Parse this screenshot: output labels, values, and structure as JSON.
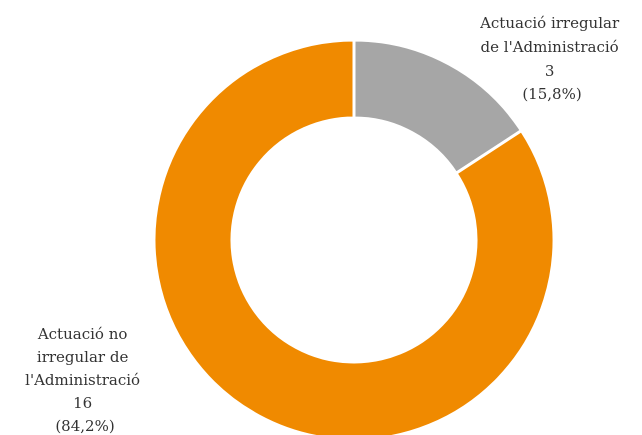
{
  "chart_data": {
    "type": "pie",
    "subtype": "donut",
    "title": "",
    "slices": [
      {
        "label_lines": [
          "Actuació irregular",
          "de l'Administració"
        ],
        "value": 3,
        "percent_label": "(15,8%)",
        "color": "#a6a6a6"
      },
      {
        "label_lines": [
          "Actuació no",
          "irregular de",
          "l'Administració"
        ],
        "value": 16,
        "percent_label": "(84,2%)",
        "color": "#f08a00"
      }
    ],
    "separator_color": "#ffffff",
    "legend": "none"
  }
}
